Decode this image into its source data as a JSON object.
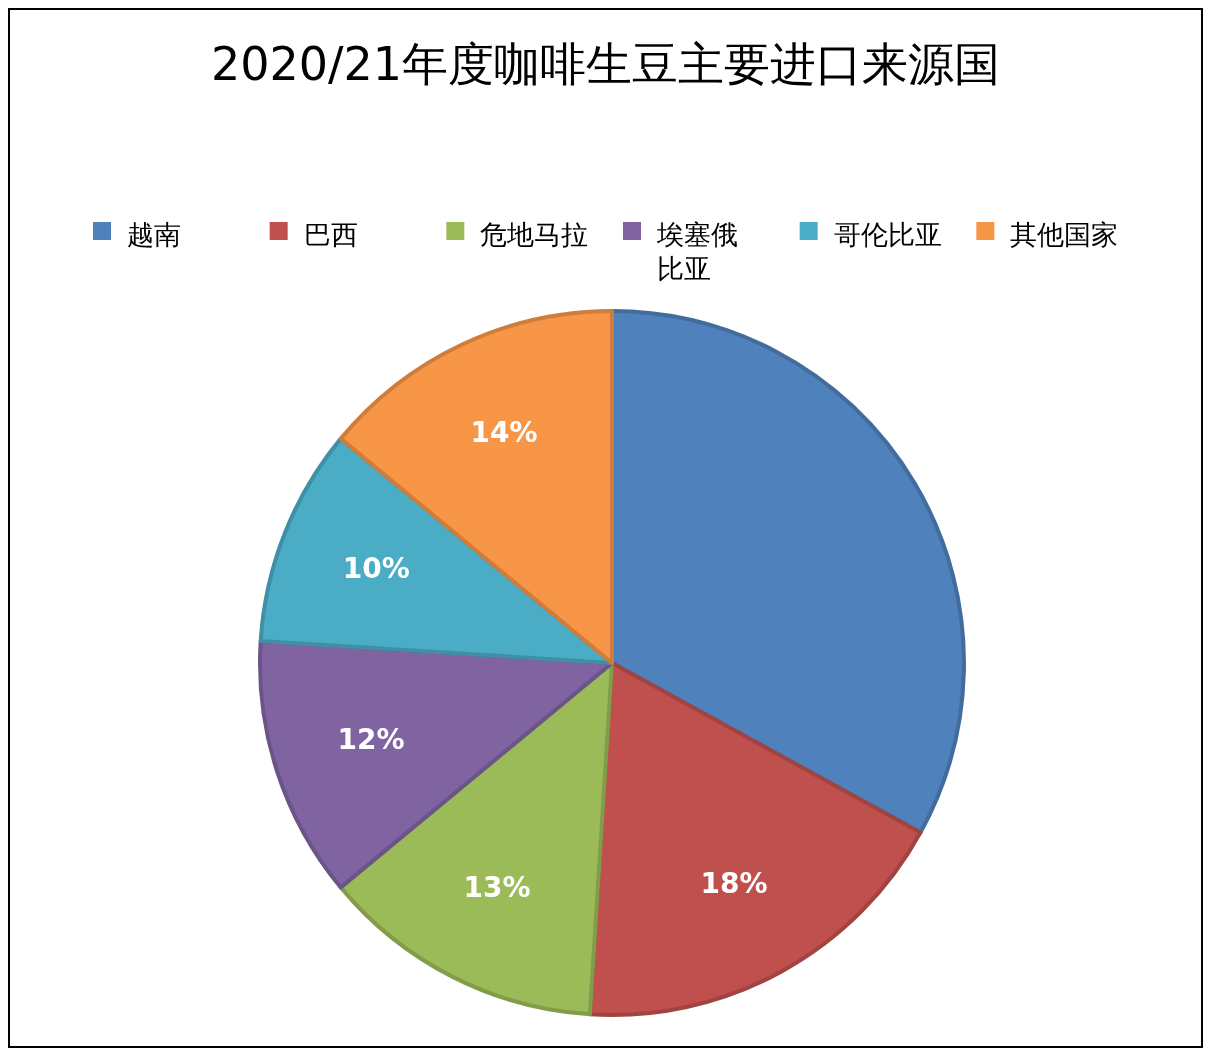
{
  "chart_data": {
    "type": "pie",
    "title": "2020/21年度咖啡生豆主要进口来源国",
    "categories": [
      "越南",
      "巴西",
      "危地马拉",
      "埃塞俄比亚",
      "哥伦比亚",
      "其他国家"
    ],
    "values": [
      33,
      18,
      13,
      12,
      10,
      14
    ],
    "colors": [
      "#4f81bd",
      "#c0504d",
      "#9bbb59",
      "#8064a2",
      "#4bacc6",
      "#f79646"
    ],
    "value_labels": [
      null,
      "18%",
      "13%",
      "12%",
      "10%",
      "14%"
    ],
    "legend": "top"
  }
}
